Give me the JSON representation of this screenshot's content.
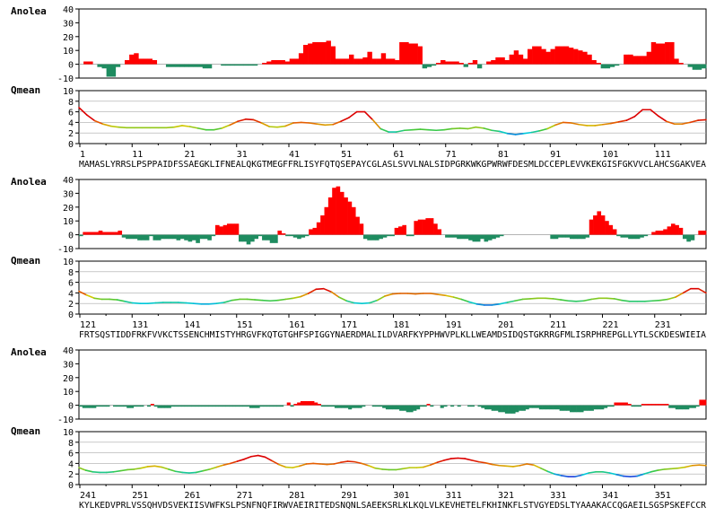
{
  "chart_data": {
    "type": "bar",
    "panels": [
      {
        "start": 1,
        "sequence": "MAMASLYRRSLPSPPAIDFSSAEGKLIFNEALQKGTMEGFFRLISYFQTQSEPAYCGLASLSVVLNALSIDPGRKWKGPWRWFDESMLDCCEPLEVVKEKGISFGKVVCLAHCSGAKVEA",
        "residue_numbers": [
          "1",
          "11",
          "21",
          "31",
          "41",
          "51",
          "61",
          "71",
          "81",
          "91",
          "101",
          "111"
        ],
        "anolea": [
          0,
          2,
          2,
          0,
          -2,
          -3,
          -9,
          -9,
          -2,
          0,
          3,
          7,
          8,
          4,
          4,
          4,
          3,
          0,
          0,
          -2,
          -2,
          -2,
          -2,
          -2,
          -2,
          -2,
          -2,
          -3,
          -3,
          0,
          0,
          -1,
          -1,
          -1,
          -1,
          -1,
          -1,
          -1,
          -1,
          0,
          1,
          2,
          3,
          3,
          3,
          2,
          4,
          4,
          8,
          14,
          15,
          16,
          16,
          16,
          17,
          13,
          4,
          4,
          4,
          7,
          4,
          4,
          5,
          9,
          4,
          4,
          8,
          4,
          4,
          3,
          16,
          16,
          15,
          15,
          13,
          -3,
          -2,
          -1,
          1,
          3,
          2,
          2,
          2,
          1,
          -2,
          1,
          3,
          -3,
          0,
          2,
          3,
          5,
          5,
          3,
          7,
          10,
          7,
          4,
          11,
          13,
          13,
          11,
          9,
          11,
          13,
          13,
          13,
          12,
          11,
          10,
          9,
          7,
          3,
          1,
          -3,
          -3,
          -2,
          -1,
          0,
          7,
          7,
          6,
          6,
          6,
          9,
          16,
          15,
          15,
          16,
          16,
          4,
          1,
          0,
          -2,
          -4,
          -4,
          -3
        ],
        "qmean": [
          6.8,
          5.4,
          4.3,
          3.7,
          3.3,
          3.1,
          3.0,
          3.0,
          3.0,
          3.0,
          3.0,
          3.0,
          3.1,
          3.4,
          3.2,
          2.9,
          2.6,
          2.6,
          2.9,
          3.5,
          4.2,
          4.6,
          4.5,
          3.9,
          3.2,
          3.1,
          3.3,
          3.9,
          4.0,
          3.9,
          3.7,
          3.5,
          3.6,
          4.2,
          4.9,
          6.0,
          6.0,
          4.5,
          2.8,
          2.2,
          2.2,
          2.5,
          2.6,
          2.7,
          2.6,
          2.5,
          2.6,
          2.8,
          2.9,
          2.8,
          3.1,
          2.9,
          2.5,
          2.3,
          1.9,
          1.7,
          1.9,
          2.1,
          2.4,
          2.8,
          3.5,
          4.0,
          3.9,
          3.6,
          3.4,
          3.4,
          3.6,
          3.8,
          4.1,
          4.4,
          5.1,
          6.4,
          6.4,
          5.2,
          4.2,
          3.7,
          3.7,
          4.0,
          4.4,
          4.5
        ]
      },
      {
        "start": 121,
        "sequence": "FRTSQSTIDDFRKFVVKCTSSENCHMISTYHRGVFKQTGTGHFSPIGGYNAERDMALILDVARFKYPPHWVPLKLLWEAMDSIDQSTGKRRGFMLISRPHREPGLLYTLSCKDESWIEIA",
        "residue_numbers": [
          "121",
          "131",
          "141",
          "151",
          "161",
          "171",
          "181",
          "191",
          "201",
          "211",
          "221",
          "231"
        ],
        "anolea": [
          -1,
          2,
          2,
          2,
          2,
          3,
          2,
          2,
          2,
          2,
          3,
          -2,
          -3,
          -3,
          -3,
          -4,
          -4,
          -4,
          -1,
          -4,
          -4,
          -3,
          -3,
          -3,
          -3,
          -4,
          -3,
          -4,
          -5,
          -4,
          -6,
          -3,
          -3,
          -4,
          -1,
          7,
          6,
          7,
          8,
          8,
          8,
          -5,
          -5,
          -7,
          -5,
          -3,
          -1,
          -4,
          -4,
          -6,
          -6,
          3,
          1,
          -1,
          -1,
          -2,
          -3,
          -2,
          -1,
          4,
          5,
          9,
          14,
          20,
          27,
          34,
          35,
          31,
          27,
          24,
          20,
          13,
          8,
          -3,
          -4,
          -4,
          -4,
          -3,
          -2,
          -1,
          -1,
          5,
          6,
          7,
          -1,
          -1,
          10,
          11,
          11,
          12,
          12,
          8,
          4,
          0,
          -2,
          -2,
          -2,
          -3,
          -3,
          -3,
          -4,
          -5,
          -5,
          -3,
          -5,
          -4,
          -3,
          -2,
          -1,
          0,
          0,
          0,
          0,
          0,
          0,
          0,
          0,
          0,
          0,
          0,
          0,
          -3,
          -3,
          -2,
          -2,
          -2,
          -3,
          -3,
          -3,
          -3,
          -2,
          11,
          14,
          17,
          14,
          10,
          7,
          4,
          -1,
          -2,
          -2,
          -3,
          -3,
          -3,
          -2,
          -1,
          0,
          2,
          3,
          3,
          4,
          6,
          8,
          7,
          5,
          -3,
          -5,
          -4,
          0,
          3,
          3
        ],
        "qmean": [
          4.3,
          3.6,
          3.0,
          2.8,
          2.8,
          2.7,
          2.4,
          2.1,
          2.0,
          2.0,
          2.1,
          2.2,
          2.2,
          2.2,
          2.1,
          2.0,
          1.9,
          1.9,
          2.0,
          2.2,
          2.6,
          2.8,
          2.8,
          2.7,
          2.6,
          2.5,
          2.6,
          2.8,
          3.0,
          3.3,
          3.9,
          4.7,
          4.8,
          4.2,
          3.2,
          2.5,
          2.1,
          2.0,
          2.1,
          2.6,
          3.4,
          3.8,
          3.9,
          3.9,
          3.8,
          3.9,
          3.9,
          3.7,
          3.5,
          3.2,
          2.8,
          2.3,
          1.9,
          1.7,
          1.7,
          1.9,
          2.2,
          2.5,
          2.8,
          2.9,
          3.0,
          3.0,
          2.9,
          2.7,
          2.5,
          2.4,
          2.5,
          2.8,
          3.0,
          3.0,
          2.9,
          2.6,
          2.4,
          2.4,
          2.4,
          2.5,
          2.6,
          2.8,
          3.2,
          4.0,
          4.8,
          4.8,
          4.0
        ]
      },
      {
        "start": 241,
        "sequence": "KYLKEDVPRLVSSQHVDSVEKIISVWFKSLPSNFNQFIRWVAEIRITEDSNQNLSAEEKSRLKLKQLVLKEVHETELFKHINKFLSTVGYEDSLTYAAAKACCQGAEILSGSPSKEFCCR",
        "residue_numbers": [
          "241",
          "251",
          "261",
          "271",
          "281",
          "291",
          "301",
          "311",
          "321",
          "331",
          "341",
          "351"
        ],
        "anolea": [
          -1,
          -2,
          -2,
          -2,
          -2,
          -1,
          -1,
          -1,
          -1,
          0,
          -1,
          -1,
          -1,
          -1,
          -2,
          -2,
          -1,
          -1,
          -1,
          0,
          -1,
          1,
          -1,
          -2,
          -2,
          -2,
          -2,
          -1,
          -1,
          -1,
          -1,
          -1,
          -1,
          -1,
          -1,
          -1,
          -1,
          -1,
          -1,
          -1,
          -1,
          -1,
          -1,
          -1,
          -1,
          -1,
          -1,
          -1,
          -1,
          -1,
          -2,
          -2,
          -2,
          -1,
          -1,
          -1,
          -1,
          -1,
          -1,
          -1,
          0,
          2,
          -1,
          1,
          2,
          3,
          3,
          3,
          3,
          2,
          1,
          -1,
          -1,
          -1,
          -1,
          -2,
          -2,
          -2,
          -2,
          -3,
          -2,
          -2,
          -2,
          -1,
          0,
          0,
          -1,
          -1,
          -1,
          -2,
          -3,
          -3,
          -3,
          -3,
          -4,
          -4,
          -5,
          -5,
          -4,
          -3,
          -1,
          -1,
          1,
          -1,
          0,
          0,
          -2,
          -1,
          0,
          -1,
          0,
          -1,
          0,
          0,
          -1,
          -1,
          0,
          -1,
          -2,
          -3,
          -3,
          -4,
          -4,
          -5,
          -5,
          -6,
          -6,
          -6,
          -5,
          -4,
          -4,
          -3,
          -2,
          -2,
          -2,
          -3,
          -3,
          -3,
          -3,
          -3,
          -3,
          -4,
          -4,
          -4,
          -5,
          -5,
          -5,
          -5,
          -4,
          -4,
          -4,
          -3,
          -3,
          -3,
          -2,
          -1,
          -1,
          2,
          2,
          2,
          2,
          1,
          -1,
          -1,
          -1,
          1,
          1,
          1,
          1,
          1,
          1,
          1,
          1,
          -2,
          -2,
          -3,
          -3,
          -3,
          -3,
          -2,
          -2,
          -1,
          4,
          4
        ],
        "qmean": [
          3.2,
          2.7,
          2.4,
          2.3,
          2.3,
          2.4,
          2.6,
          2.8,
          2.9,
          3.1,
          3.4,
          3.5,
          3.3,
          2.9,
          2.5,
          2.3,
          2.2,
          2.3,
          2.6,
          2.9,
          3.3,
          3.7,
          4.0,
          4.4,
          4.8,
          5.3,
          5.5,
          5.2,
          4.5,
          3.8,
          3.3,
          3.2,
          3.5,
          3.9,
          4.0,
          3.9,
          3.8,
          3.9,
          4.2,
          4.4,
          4.3,
          4.0,
          3.6,
          3.1,
          2.9,
          2.8,
          2.8,
          3.0,
          3.2,
          3.2,
          3.3,
          3.7,
          4.2,
          4.6,
          4.9,
          5.0,
          4.9,
          4.6,
          4.3,
          4.1,
          3.8,
          3.6,
          3.5,
          3.4,
          3.6,
          3.9,
          3.7,
          3.1,
          2.5,
          2.0,
          1.7,
          1.5,
          1.5,
          1.8,
          2.2,
          2.4,
          2.4,
          2.2,
          1.9,
          1.6,
          1.5,
          1.6,
          2.0,
          2.4,
          2.7,
          2.9,
          3.0,
          3.1,
          3.3,
          3.6,
          3.7,
          3.6
        ]
      }
    ],
    "anolea_label": "Anolea",
    "qmean_label": "Qmean",
    "anolea_ticks": [
      "40",
      "30",
      "20",
      "10",
      "0",
      "-10"
    ],
    "qmean_ticks": [
      "10",
      "8",
      "6",
      "4",
      "2",
      "0"
    ],
    "anolea_ylim": [
      -10,
      40
    ],
    "qmean_ylim": [
      0,
      10
    ],
    "colors": {
      "positive": "#ff0000",
      "negative": "#1e8c60",
      "axis": "#000000",
      "grid": "#aaaaaa"
    }
  }
}
